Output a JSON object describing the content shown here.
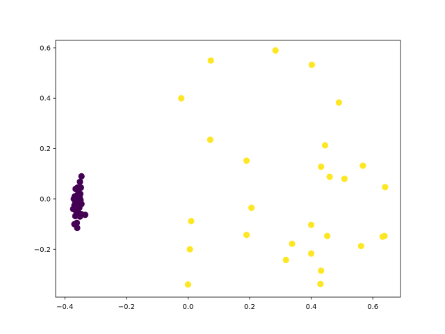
{
  "chart_data": {
    "type": "scatter",
    "title": "",
    "xlabel": "",
    "ylabel": "",
    "xlim": [
      -0.43,
      0.69
    ],
    "ylim": [
      -0.39,
      0.63
    ],
    "grid": false,
    "xticks": [
      -0.4,
      -0.2,
      0.0,
      0.2,
      0.4,
      0.6
    ],
    "xtick_labels": [
      "−0.4",
      "−0.2",
      "0.0",
      "0.2",
      "0.4",
      "0.6"
    ],
    "yticks": [
      -0.2,
      0.0,
      0.2,
      0.4,
      0.6
    ],
    "ytick_labels": [
      "−0.2",
      "0.0",
      "0.2",
      "0.4",
      "0.6"
    ],
    "colors": {
      "cluster_0": "#440154",
      "cluster_1": "#fde725"
    },
    "series": [
      {
        "color": "#440154",
        "x": [
          -0.346,
          -0.351,
          -0.359,
          -0.348,
          -0.365,
          -0.356,
          -0.35,
          -0.36,
          -0.368,
          -0.352,
          -0.371,
          -0.362,
          -0.349,
          -0.357,
          -0.366,
          -0.355,
          -0.346,
          -0.369,
          -0.363,
          -0.353,
          -0.373,
          -0.358,
          -0.347,
          -0.334,
          -0.362,
          -0.354,
          -0.366,
          -0.351,
          -0.361,
          -0.369,
          -0.36,
          -0.355
        ],
        "y": [
          0.09,
          0.068,
          0.045,
          0.045,
          0.04,
          0.03,
          0.02,
          0.015,
          0.01,
          0.005,
          0.0,
          -0.003,
          -0.005,
          -0.008,
          -0.01,
          -0.015,
          -0.02,
          -0.025,
          -0.03,
          -0.035,
          -0.04,
          -0.05,
          -0.06,
          -0.063,
          -0.055,
          -0.065,
          -0.068,
          -0.07,
          -0.095,
          -0.1,
          -0.115,
          -0.012
        ]
      },
      {
        "color": "#fde725",
        "x": [
          0.284,
          0.402,
          0.074,
          -0.022,
          0.49,
          0.072,
          0.445,
          0.19,
          0.432,
          0.568,
          0.46,
          0.508,
          0.64,
          0.206,
          0.01,
          0.4,
          0.19,
          0.452,
          0.632,
          0.638,
          0.338,
          0.562,
          0.006,
          0.4,
          0.318,
          0.432,
          0.0,
          0.43
        ],
        "y": [
          0.59,
          0.533,
          0.55,
          0.4,
          0.383,
          0.235,
          0.213,
          0.152,
          0.128,
          0.132,
          0.088,
          0.08,
          0.047,
          -0.035,
          -0.088,
          -0.103,
          -0.143,
          -0.147,
          -0.15,
          -0.147,
          -0.178,
          -0.187,
          -0.2,
          -0.217,
          -0.242,
          -0.285,
          -0.34,
          -0.338
        ]
      }
    ]
  }
}
